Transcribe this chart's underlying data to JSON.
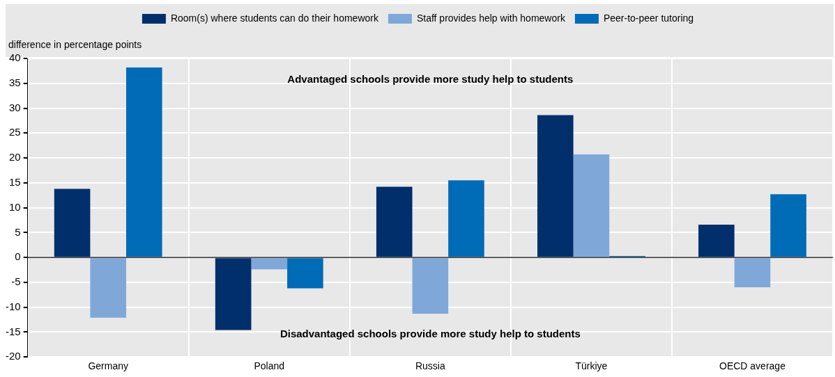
{
  "chart_data": {
    "type": "bar",
    "ylabel": "difference in percentage points",
    "categories": [
      "Germany",
      "Poland",
      "Russia",
      "Türkiye",
      "OECD average"
    ],
    "series": [
      {
        "name": "Room(s) where students can do their homework",
        "color": "#002f6c",
        "values": [
          13.8,
          -14.6,
          14.2,
          28.6,
          6.6
        ]
      },
      {
        "name": "Staff provides help with homework",
        "color": "#7fa8d9",
        "values": [
          -12.1,
          -2.4,
          -11.3,
          20.7,
          -6.0
        ]
      },
      {
        "name": "Peer-to-peer tutoring",
        "color": "#006bb6",
        "values": [
          38.2,
          -6.2,
          15.5,
          0.3,
          12.7
        ]
      }
    ],
    "ylim": [
      -20,
      40
    ],
    "yticks": [
      -20,
      -15,
      -10,
      -5,
      0,
      5,
      10,
      15,
      20,
      25,
      30,
      35,
      40
    ],
    "grid": true,
    "legend": "top",
    "annotations": [
      "Advantaged schools provide more study help to students",
      "Disadvantaged schools provide more study help to students"
    ]
  }
}
